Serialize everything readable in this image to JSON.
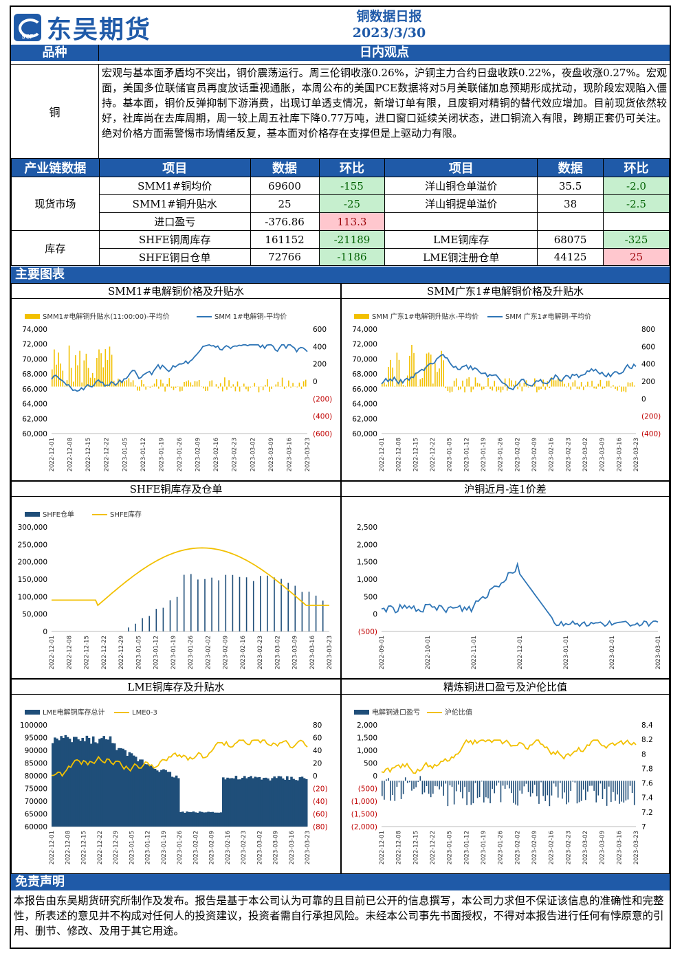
{
  "logo": {
    "cn": "东吴期货",
    "en": "SCF"
  },
  "report": {
    "title": "铜数据日报",
    "date": "2023/3/30"
  },
  "section1": {
    "col1": "品种",
    "col2": "日内观点"
  },
  "commodity": "铜",
  "viewpoint": "宏观与基本面矛盾均不突出，铜价震荡运行。周三伦铜收涨0.26%，沪铜主力合约日盘收跌0.22%，夜盘收涨0.27%。宏观面，美国多位联储官员再度放话重视通胀，本周公布的美国PCE数据将对5月美联储加息预期形成扰动，现阶段宏观陷入僵持。基本面，铜价反弹抑制下游消费，出现订单透支情况，新增订单有限，且废铜对精铜的替代效应增加。目前现货依然较好，社库尚在去库周期，周一较上周五社库下降0.77万吨，进口窗口延续关闭状态，进口铜流入有限，跨期正套仍可关注。绝对价格方面需警惕市场情绪反复，基本面对价格存在支撑但是上驱动力有限。",
  "table": {
    "headers": [
      "产业链数据",
      "项目",
      "数据",
      "环比",
      "项目",
      "数据",
      "环比"
    ],
    "spot_label": "现货市场",
    "stock_label": "库存",
    "rows": [
      {
        "item1": "SMM1#铜均价",
        "v1": "69600",
        "c1": "-155",
        "item2": "洋山铜仓单溢价",
        "v2": "35.5",
        "c2": "-2.0"
      },
      {
        "item1": "SMM1#铜升贴水",
        "v1": "25",
        "c1": "-25",
        "item2": "洋山铜提单溢价",
        "v2": "38",
        "c2": "-2.5"
      },
      {
        "item1": "进口盈亏",
        "v1": "-376.86",
        "c1": "113.3",
        "item2": "",
        "v2": "",
        "c2": ""
      },
      {
        "item1": "SHFE铜周库存",
        "v1": "161152",
        "c1": "-21189",
        "item2": "LME铜库存",
        "v2": "68075",
        "c2": "-325"
      },
      {
        "item1": "SHFE铜日仓单",
        "v1": "72766",
        "c1": "-1186",
        "item2": "LME铜注册仓单",
        "v2": "44125",
        "c2": "25"
      }
    ]
  },
  "charts_header": "主要图表",
  "charts": [
    {
      "title": "SMM1#电解铜价格及升贴水",
      "legend": [
        "SMM1#电解铜升贴水(11:00:00)-平均价",
        "SMM 1#电解铜-平均价"
      ],
      "yl": [
        "74,000",
        "72,000",
        "70,000",
        "68,000",
        "66,000",
        "64,000",
        "62,000",
        "60,000"
      ],
      "yr": [
        "600",
        "400",
        "200",
        "0",
        "(200)",
        "(400)",
        "(600)"
      ],
      "x": [
        "2022-12-01",
        "2022-12-08",
        "2022-12-15",
        "2022-12-22",
        "2023-01-05",
        "2023-01-12",
        "2023-01-19",
        "2023-01-26",
        "2023-02-09",
        "2023-02-16",
        "2023-02-23",
        "2023-03-02",
        "2023-03-09",
        "2023-03-16",
        "2023-03-23"
      ]
    },
    {
      "title": "SMM广东1#电解铜价格及升贴水",
      "legend": [
        "SMM 广东1#电解铜升贴水-平均价",
        "SMM 广东1#电解铜-平均价"
      ],
      "yl": [
        "74,000",
        "72,000",
        "70,000",
        "68,000",
        "66,000",
        "64,000",
        "62,000",
        "60,000"
      ],
      "yr": [
        "800",
        "600",
        "400",
        "200",
        "0",
        "(200)",
        "(400)"
      ],
      "x": [
        "2022-12-01",
        "2022-12-08",
        "2022-12-15",
        "2022-12-22",
        "2023-01-05",
        "2023-01-12",
        "2023-01-19",
        "2023-01-26",
        "2023-02-02",
        "2023-02-09",
        "2023-02-16",
        "2023-02-23",
        "2023-03-02",
        "2023-03-09",
        "2023-03-16",
        "2023-03-23"
      ]
    },
    {
      "title": "SHFE铜库存及仓单",
      "legend": [
        "SHFE仓单",
        "SHFE库存"
      ],
      "yl": [
        "300,000",
        "250,000",
        "200,000",
        "150,000",
        "100,000",
        "50,000",
        "0"
      ],
      "x": [
        "2022-12-01",
        "2022-12-08",
        "2022-12-15",
        "2022-12-22",
        "2022-12-29",
        "2023-01-05",
        "2023-01-12",
        "2023-01-19",
        "2023-01-26",
        "2023-02-02",
        "2023-02-09",
        "2023-02-16",
        "2023-02-23",
        "2023-03-02",
        "2023-03-09",
        "2023-03-16",
        "2023-03-23"
      ]
    },
    {
      "title": "沪铜近月-连1价差",
      "legend": [],
      "yl": [
        "2,500",
        "2,000",
        "1,500",
        "1,000",
        "500",
        "0",
        "(500)"
      ],
      "x": [
        "2022-09-01",
        "2022-10-01",
        "2022-11-01",
        "2022-12-01",
        "2023-01-01",
        "2023-02-01",
        "2023-03-01"
      ]
    },
    {
      "title": "LME铜库存及升贴水",
      "legend": [
        "LME电解铜库存总计",
        "LME0-3"
      ],
      "yl": [
        "100000",
        "95000",
        "90000",
        "85000",
        "80000",
        "75000",
        "70000",
        "65000",
        "60000"
      ],
      "yr": [
        "80",
        "60",
        "40",
        "20",
        "0",
        "(20)",
        "(40)",
        "(60)",
        "(80)"
      ],
      "x": [
        "2022-12-01",
        "2022-12-08",
        "2022-12-15",
        "2022-12-22",
        "2022-12-29",
        "2023-01-05",
        "2023-01-12",
        "2023-01-19",
        "2023-01-26",
        "2023-02-02",
        "2023-02-09",
        "2023-02-16",
        "2023-02-23",
        "2023-03-02",
        "2023-03-09",
        "2023-03-16",
        "2023-03-23"
      ]
    },
    {
      "title": "精炼铜进口盈亏及沪伦比值",
      "legend": [
        "电解铜进口盈亏",
        "沪伦比值"
      ],
      "yl": [
        "2,000",
        "1,500",
        "1,000",
        "500",
        "0",
        "(500)",
        "(1,000)",
        "(1,500)",
        "(2,000)"
      ],
      "yr": [
        "8.4",
        "8.2",
        "8",
        "7.8",
        "7.6",
        "7.4",
        "7.2",
        "7"
      ],
      "x": [
        "2022-12-01",
        "2022-12-08",
        "2022-12-15",
        "2022-12-22",
        "2023-01-05",
        "2023-01-12",
        "2023-01-19",
        "2023-01-26",
        "2023-02-02",
        "2023-02-09",
        "2023-02-16",
        "2023-02-23",
        "2023-03-02",
        "2023-03-09",
        "2023-03-16",
        "2023-03-23"
      ]
    }
  ],
  "disclaimer": {
    "title": "免责声明",
    "text": "本报告由东吴期货研究所制作及发布。报告是基于本公司认为可靠的且目前已公开的信息撰写，本公司力求但不保证该信息的准确性和完整性，所表述的意见并不构成对任何人的投资建议，投资者需自行承担风险。未经本公司事先书面授权，不得对本报告进行任何有悖原意的引用、删节、修改、及用于其它用途。"
  }
}
